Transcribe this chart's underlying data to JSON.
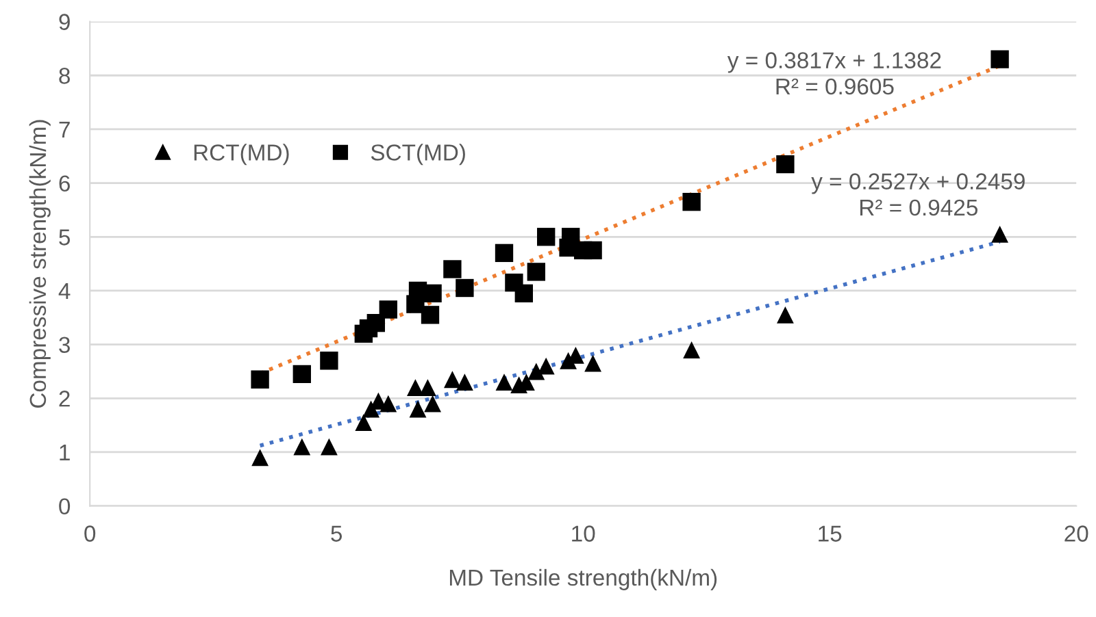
{
  "chart_data": {
    "type": "scatter",
    "xlabel": "MD Tensile strength(kN/m)",
    "ylabel": "Compressive strength(kN/m)",
    "xlim": [
      0,
      20
    ],
    "xticks": [
      0,
      5,
      10,
      15,
      20
    ],
    "ylim": [
      0,
      9
    ],
    "yticks": [
      0,
      1,
      2,
      3,
      4,
      5,
      6,
      7,
      8,
      9
    ],
    "grid": "y",
    "legend": "top left",
    "series": [
      {
        "name": "RCT(MD)",
        "color": "#000000",
        "marker": "triangle",
        "x": [
          3.45,
          4.3,
          4.85,
          5.55,
          5.7,
          5.85,
          6.05,
          6.6,
          6.65,
          6.85,
          6.95,
          7.35,
          7.6,
          8.4,
          8.7,
          8.85,
          9.05,
          9.25,
          9.7,
          9.85,
          10.2,
          12.2,
          14.1,
          18.45
        ],
        "values": [
          0.9,
          1.1,
          1.1,
          1.55,
          1.8,
          1.95,
          1.9,
          2.2,
          1.8,
          2.2,
          1.9,
          2.35,
          2.3,
          2.3,
          2.25,
          2.3,
          2.5,
          2.6,
          2.7,
          2.8,
          2.65,
          2.9,
          3.55,
          5.05
        ]
      },
      {
        "name": "SCT(MD)",
        "color": "#000000",
        "marker": "square",
        "x": [
          3.45,
          4.3,
          4.85,
          5.55,
          5.65,
          5.8,
          6.05,
          6.6,
          6.65,
          6.9,
          6.95,
          7.35,
          7.6,
          8.4,
          8.6,
          8.8,
          9.05,
          9.25,
          9.7,
          9.75,
          10.0,
          10.2,
          12.2,
          14.1,
          18.45
        ],
        "values": [
          2.35,
          2.45,
          2.7,
          3.2,
          3.3,
          3.4,
          3.65,
          3.75,
          4.0,
          3.55,
          3.95,
          4.4,
          4.05,
          4.7,
          4.15,
          3.95,
          4.35,
          5.0,
          4.8,
          5.0,
          4.75,
          4.75,
          5.65,
          6.35,
          8.3
        ]
      },
      {
        "type": "line",
        "color": "#4472c4",
        "line_style": "dotted",
        "x": [
          3.45,
          18.45
        ],
        "values": [
          1.12,
          4.91
        ]
      },
      {
        "type": "line",
        "color": "#ed7d31",
        "line_style": "dotted",
        "x": [
          3.45,
          18.45
        ],
        "values": [
          2.46,
          8.18
        ]
      }
    ],
    "annotations": [
      "y = 0.3817x + 1.1382\nR² = 0.9605",
      "y = 0.2527x + 0.2459\nR² = 0.9425"
    ]
  }
}
